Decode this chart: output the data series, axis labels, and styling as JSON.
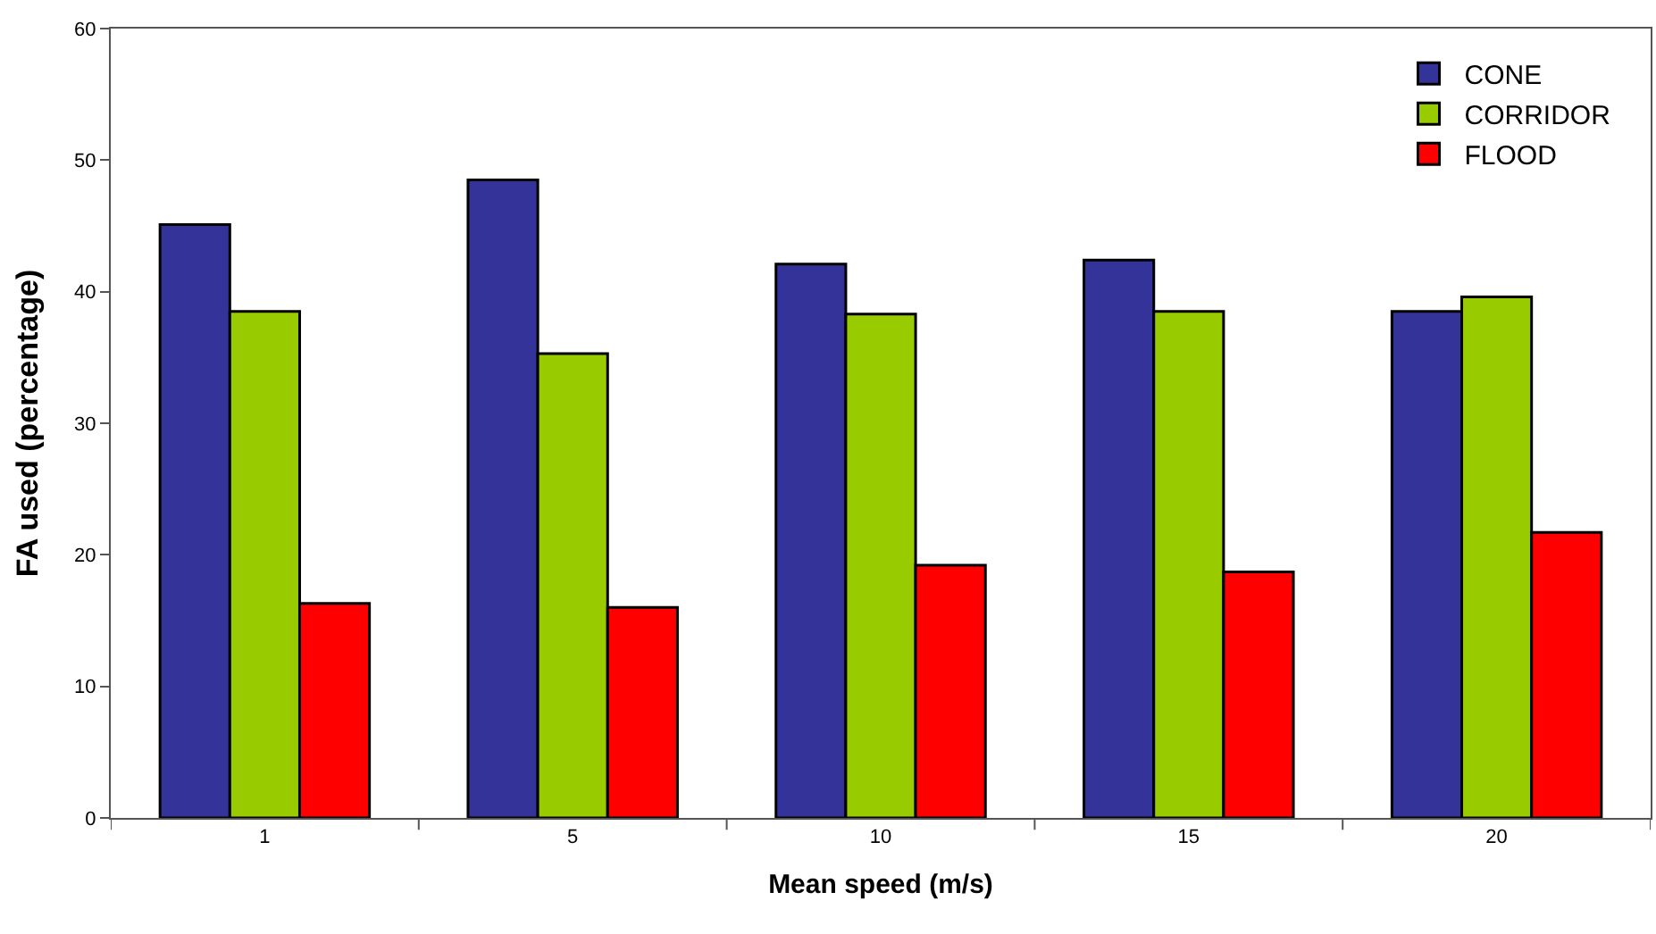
{
  "chart_data": {
    "type": "bar",
    "xlabel": "Mean speed (m/s)",
    "ylabel": "FA used (percentage)",
    "categories": [
      "1",
      "5",
      "10",
      "15",
      "20"
    ],
    "series": [
      {
        "name": "CONE",
        "color": "#33339a",
        "values": [
          45.1,
          48.5,
          42.1,
          42.4,
          38.5
        ]
      },
      {
        "name": "CORRIDOR",
        "color": "#99cc00",
        "values": [
          38.5,
          35.3,
          38.3,
          38.5,
          39.6
        ]
      },
      {
        "name": "FLOOD",
        "color": "#ff0000",
        "values": [
          16.3,
          16.0,
          19.2,
          18.7,
          21.7
        ]
      }
    ],
    "ylim": [
      0,
      60
    ],
    "yticks": [
      0,
      10,
      20,
      30,
      40,
      50,
      60
    ],
    "legend": "top right"
  }
}
